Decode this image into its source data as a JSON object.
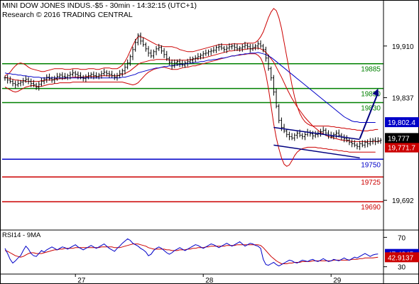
{
  "header": {
    "line1": "MINI DOW JONES INDUS.-$5 - 30min - 14:32:15 (UTC+1)",
    "line2": "Research © 2016 TRADING CENTRAL"
  },
  "chart_data": [
    {
      "type": "line",
      "name": "price",
      "x_labels": [
        "27",
        "28",
        "29"
      ],
      "y_ticks": [
        19910,
        19837,
        19692
      ],
      "ylim": [
        19650,
        19975
      ],
      "grid": false,
      "candles_close": [
        19865,
        19862,
        19860,
        19857,
        19855,
        19857,
        19859,
        19861,
        19863,
        19860,
        19857,
        19855,
        19852,
        19856,
        19860,
        19863,
        19866,
        19864,
        19862,
        19864,
        19867,
        19869,
        19867,
        19866,
        19868,
        19870,
        19872,
        19870,
        19868,
        19866,
        19864,
        19866,
        19868,
        19870,
        19868,
        19867,
        19869,
        19871,
        19873,
        19871,
        19870,
        19868,
        19866,
        19868,
        19871,
        19875,
        19880,
        19886,
        19895,
        19905,
        19915,
        19925,
        19917,
        19912,
        19906,
        19900,
        19896,
        19902,
        19906,
        19908,
        19903,
        19898,
        19892,
        19887,
        19882,
        19886,
        19888,
        19885,
        19883,
        19886,
        19888,
        19890,
        19892,
        19893,
        19895,
        19897,
        19899,
        19900,
        19902,
        19903,
        19904,
        19908,
        19909,
        19907,
        19905,
        19907,
        19909,
        19910,
        19908,
        19906,
        19907,
        19909,
        19911,
        19909,
        19906,
        19908,
        19910,
        19913,
        19910,
        19905,
        19893,
        19878,
        19865,
        19845,
        19825,
        19805,
        19795,
        19790,
        19785,
        19782,
        19780,
        19784,
        19787,
        19784,
        19782,
        19785,
        19788,
        19786,
        19783,
        19785,
        19787,
        19789,
        19791,
        19787,
        19784,
        19782,
        19785,
        19787,
        19784,
        19781,
        19779,
        19777,
        19774,
        19772,
        19770,
        19768,
        19772,
        19770,
        19774,
        19772,
        19775,
        19777,
        19775,
        19776,
        19777
      ],
      "bollinger_upper": [
        19868,
        19870,
        19873,
        19878,
        19882,
        19885,
        19886,
        19885,
        19883,
        19880,
        19878,
        19877,
        19876,
        19875,
        19874,
        19874,
        19875,
        19876,
        19877,
        19878,
        19878,
        19878,
        19878,
        19877,
        19877,
        19877,
        19878,
        19878,
        19878,
        19877,
        19877,
        19877,
        19878,
        19878,
        19878,
        19877,
        19877,
        19878,
        19879,
        19879,
        19879,
        19878,
        19878,
        19878,
        19880,
        19883,
        19888,
        19895,
        19903,
        19911,
        19918,
        19923,
        19923,
        19922,
        19920,
        19918,
        19916,
        19914,
        19912,
        19911,
        19910,
        19909,
        19909,
        19909,
        19909,
        19908,
        19907,
        19905,
        19904,
        19903,
        19902,
        19902,
        19902,
        19903,
        19904,
        19905,
        19906,
        19907,
        19908,
        19909,
        19910,
        19911,
        19912,
        19912,
        19912,
        19912,
        19912,
        19913,
        19913,
        19913,
        19913,
        19913,
        19914,
        19914,
        19914,
        19914,
        19915,
        19918,
        19923,
        19930,
        19940,
        19950,
        19958,
        19963,
        19960,
        19950,
        19935,
        19915,
        19895,
        19875,
        19855,
        19838,
        19825,
        19815,
        19808,
        19803,
        19800,
        19798,
        19797,
        19797,
        19797,
        19797,
        19797,
        19797,
        19797,
        19796,
        19796,
        19795,
        19795,
        19794,
        19794,
        19793,
        19793,
        19792,
        19792,
        19791,
        19791,
        19790,
        19790,
        19790,
        19791,
        19791,
        19792,
        19792
      ],
      "bollinger_middle": [
        19866,
        19865,
        19864,
        19863,
        19862,
        19862,
        19861,
        19861,
        19860,
        19860,
        19860,
        19860,
        19860,
        19860,
        19861,
        19861,
        19862,
        19862,
        19862,
        19863,
        19863,
        19864,
        19864,
        19864,
        19865,
        19865,
        19866,
        19866,
        19866,
        19866,
        19866,
        19867,
        19867,
        19867,
        19867,
        19867,
        19867,
        19868,
        19868,
        19868,
        19868,
        19868,
        19868,
        19868,
        19869,
        19870,
        19871,
        19873,
        19875,
        19878,
        19881,
        19884,
        19886,
        19887,
        19888,
        19889,
        19890,
        19890,
        19891,
        19891,
        19891,
        19891,
        19891,
        19890,
        19890,
        19890,
        19890,
        19890,
        19890,
        19890,
        19890,
        19891,
        19891,
        19892,
        19892,
        19893,
        19893,
        19894,
        19895,
        19896,
        19897,
        19898,
        19899,
        19900,
        19901,
        19902,
        19903,
        19903,
        19904,
        19904,
        19904,
        19905,
        19905,
        19906,
        19906,
        19906,
        19907,
        19907,
        19906,
        19904,
        19901,
        19897,
        19892,
        19887,
        19880,
        19873,
        19866,
        19858,
        19850,
        19843,
        19836,
        19830,
        19824,
        19819,
        19814,
        19809,
        19805,
        19801,
        19797,
        19794,
        19791,
        19788,
        19786,
        19784,
        19782,
        19781,
        19780,
        19779,
        19778,
        19777,
        19777,
        19776,
        19776,
        19775,
        19775,
        19775,
        19775,
        19775,
        19775,
        19775,
        19775,
        19775,
        19775,
        19775,
        19776
      ],
      "bollinger_lower": [
        19852,
        19850,
        19848,
        19846,
        19845,
        19846,
        19848,
        19850,
        19852,
        19853,
        19854,
        19854,
        19853,
        19853,
        19853,
        19854,
        19855,
        19856,
        19856,
        19857,
        19857,
        19858,
        19858,
        19858,
        19858,
        19858,
        19859,
        19859,
        19859,
        19859,
        19859,
        19859,
        19859,
        19859,
        19859,
        19859,
        19859,
        19859,
        19859,
        19859,
        19859,
        19859,
        19859,
        19859,
        19859,
        19859,
        19858,
        19857,
        19856,
        19855,
        19856,
        19858,
        19862,
        19866,
        19870,
        19873,
        19875,
        19877,
        19878,
        19879,
        19880,
        19880,
        19879,
        19878,
        19877,
        19877,
        19877,
        19878,
        19879,
        19880,
        19880,
        19881,
        19882,
        19882,
        19883,
        19884,
        19885,
        19886,
        19887,
        19888,
        19889,
        19890,
        19891,
        19892,
        19893,
        19894,
        19895,
        19896,
        19896,
        19897,
        19897,
        19898,
        19898,
        19899,
        19899,
        19899,
        19899,
        19897,
        19893,
        19885,
        19870,
        19850,
        19825,
        19800,
        19780,
        19765,
        19752,
        19743,
        19740,
        19742,
        19748,
        19755,
        19760,
        19763,
        19765,
        19766,
        19767,
        19767,
        19767,
        19767,
        19766,
        19766,
        19765,
        19765,
        19764,
        19764,
        19763,
        19763,
        19762,
        19762,
        19761,
        19761,
        19760,
        19760,
        19760,
        19760,
        19760,
        19760,
        19760,
        19760,
        19760,
        19760,
        19760
      ],
      "ma_long": [
        19872,
        19871,
        19871,
        19870,
        19870,
        19869,
        19869,
        19868,
        19868,
        19867,
        19867,
        19866,
        19866,
        19866,
        19865,
        19865,
        19865,
        19865,
        19865,
        19865,
        19865,
        19865,
        19865,
        19865,
        19865,
        19865,
        19865,
        19865,
        19865,
        19865,
        19865,
        19865,
        19865,
        19865,
        19865,
        19865,
        19865,
        19865,
        19865,
        19865,
        19865,
        19865,
        19865,
        19865,
        19865,
        19866,
        19866,
        19867,
        19868,
        19869,
        19870,
        19872,
        19873,
        19874,
        19875,
        19876,
        19877,
        19878,
        19879,
        19879,
        19880,
        19881,
        19881,
        19882,
        19882,
        19883,
        19883,
        19884,
        19884,
        19885,
        19885,
        19886,
        19886,
        19887,
        19887,
        19888,
        19888,
        19889,
        19890,
        19890,
        19891,
        19891,
        19892,
        19893,
        19893,
        19894,
        19895,
        19896,
        19896,
        19897,
        19898,
        19898,
        19899,
        19899,
        19900,
        19900,
        19900,
        19901,
        19900,
        19899,
        19898,
        19896,
        19894,
        19891,
        19888,
        19885,
        19882,
        19879,
        19876,
        19873,
        19870,
        19867,
        19864,
        19861,
        19858,
        19855,
        19852,
        19849,
        19846,
        19843,
        19840,
        19837,
        19834,
        19831,
        19828,
        19825,
        19822,
        19819,
        19816,
        19813,
        19810,
        19808,
        19806,
        19804,
        19803,
        19803,
        19802,
        19802,
        19802,
        19802,
        19802,
        19802,
        19802
      ],
      "levels": [
        {
          "value": 19885,
          "label": "19885",
          "color": "#008000"
        },
        {
          "value": 19850,
          "label": "19850",
          "color": "#008000"
        },
        {
          "value": 19830,
          "label": "19830",
          "color": "#008000"
        },
        {
          "value": 19750,
          "label": "19750",
          "color": "#0000c8"
        },
        {
          "value": 19725,
          "label": "19725",
          "color": "#cc0000"
        },
        {
          "value": 19690,
          "label": "19690",
          "color": "#cc0000"
        }
      ],
      "channel": {
        "upper": [
          [
            103,
            19795
          ],
          [
            136,
            19778
          ]
        ],
        "lower": [
          [
            103,
            19770
          ],
          [
            136,
            19752
          ]
        ],
        "color": "#000080"
      },
      "projection_arrow": {
        "from": [
          136,
          19779
        ],
        "to": [
          143,
          19850
        ],
        "color": "#000080"
      },
      "value_badges": [
        {
          "value": 19802.4,
          "label": "19,802.4",
          "bg": "#0000c8",
          "fg": "#ffffff"
        },
        {
          "value": 19777,
          "label": "19,777",
          "bg": "#000000",
          "fg": "#ffffff"
        },
        {
          "value": 19771.7,
          "label": "19,771.7",
          "bg": "#cc0000",
          "fg": "#ffffff"
        }
      ],
      "colors": {
        "bollinger": "#cc0000",
        "ma_long": "#0000c8",
        "candles": "#000000"
      }
    },
    {
      "type": "line",
      "name": "rsi",
      "title": "RSI14 - 9MA",
      "y_ticks": [
        70,
        30
      ],
      "ylim": [
        20,
        80
      ],
      "rsi": [
        55,
        48,
        40,
        35,
        38,
        42,
        45,
        52,
        58,
        54,
        48,
        45,
        44,
        48,
        52,
        50,
        53,
        55,
        57,
        55,
        53,
        55,
        57,
        56,
        54,
        56,
        58,
        60,
        57,
        55,
        53,
        55,
        57,
        59,
        57,
        55,
        57,
        59,
        61,
        58,
        55,
        53,
        51,
        55,
        58,
        62,
        65,
        68,
        66,
        62,
        60,
        58,
        55,
        53,
        50,
        45,
        47,
        52,
        55,
        57,
        55,
        52,
        49,
        47,
        49,
        52,
        54,
        56,
        54,
        52,
        54,
        56,
        58,
        60,
        59,
        57,
        55,
        57,
        59,
        61,
        60,
        58,
        56,
        58,
        60,
        62,
        60,
        58,
        60,
        62,
        64,
        61,
        58,
        60,
        62,
        61,
        59,
        58,
        55,
        40,
        33,
        32,
        34,
        36,
        33,
        31,
        33,
        35,
        37,
        39,
        38,
        36,
        35,
        37,
        39,
        38,
        37,
        39,
        40,
        38,
        37,
        39,
        41,
        39,
        37,
        38,
        40,
        39,
        38,
        40,
        42,
        40,
        39,
        41,
        43,
        42,
        44,
        46,
        48,
        46,
        44,
        46,
        47,
        47.4345
      ],
      "rsi_ma": [
        52,
        51,
        49,
        47,
        45,
        44,
        43,
        44,
        46,
        48,
        49,
        49,
        48,
        48,
        48,
        49,
        50,
        51,
        52,
        53,
        53,
        54,
        54,
        55,
        55,
        55,
        55,
        56,
        56,
        56,
        56,
        56,
        56,
        56,
        56,
        56,
        56,
        57,
        57,
        57,
        57,
        57,
        56,
        56,
        56,
        57,
        58,
        59,
        60,
        61,
        61,
        61,
        60,
        59,
        58,
        56,
        55,
        54,
        54,
        54,
        54,
        54,
        53,
        53,
        52,
        52,
        52,
        53,
        53,
        53,
        54,
        54,
        55,
        55,
        56,
        56,
        56,
        57,
        57,
        58,
        58,
        58,
        58,
        58,
        58,
        59,
        59,
        59,
        59,
        60,
        60,
        60,
        60,
        60,
        60,
        60,
        60,
        60,
        59,
        56,
        52,
        48,
        44,
        41,
        38,
        36,
        34,
        34,
        34,
        35,
        35,
        36,
        36,
        36,
        37,
        37,
        37,
        37,
        38,
        38,
        38,
        38,
        38,
        38,
        38,
        38,
        39,
        39,
        39,
        39,
        39,
        39,
        39,
        40,
        40,
        40,
        41,
        41,
        42,
        42,
        42,
        42,
        42.5,
        42.9137
      ],
      "value_badges": [
        {
          "value": 47.4345,
          "label": "47.4345",
          "bg": "#0000c8",
          "fg": "#ffffff"
        },
        {
          "value": 42.9137,
          "label": "42.9137",
          "bg": "#cc0000",
          "fg": "#ffffff"
        }
      ],
      "colors": {
        "rsi": "#0000c8",
        "rsi_ma": "#cc0000"
      }
    }
  ]
}
